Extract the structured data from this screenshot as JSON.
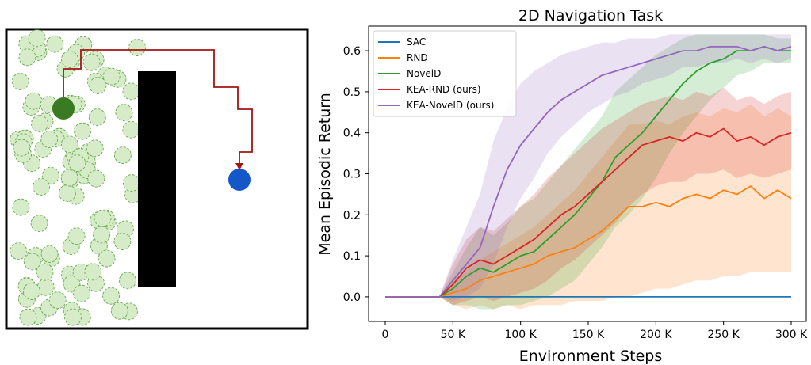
{
  "environment": {
    "start_color": "#3a7a22",
    "goal_color": "#1457c8",
    "path_color": "#a31515",
    "obstacle_color": "#000000",
    "circle_fill": "#d6ecc8",
    "circle_stroke": "#6aa84f"
  },
  "chart_data": {
    "type": "line",
    "title": "2D Navigation Task",
    "xlabel": "Environment Steps",
    "ylabel": "Mean Episodic Return",
    "xlim": [
      0,
      300000
    ],
    "ylim": [
      -0.06,
      0.66
    ],
    "xticks": [
      0,
      50000,
      100000,
      150000,
      200000,
      250000,
      300000
    ],
    "xtick_labels": [
      "0",
      "50 K",
      "100 K",
      "150 K",
      "200 K",
      "250 K",
      "300 K"
    ],
    "yticks": [
      0.0,
      0.1,
      0.2,
      0.3,
      0.4,
      0.5,
      0.6
    ],
    "ytick_labels": [
      "0.0",
      "0.1",
      "0.2",
      "0.3",
      "0.4",
      "0.5",
      "0.6"
    ],
    "legend_position": "upper-left",
    "grid": false,
    "series": [
      {
        "name": "SAC",
        "color": "#1f77b4",
        "x": [
          0,
          300000
        ],
        "y": [
          0.0,
          0.0
        ],
        "lower": [
          0.0,
          0.0
        ],
        "upper": [
          0.0,
          0.0
        ]
      },
      {
        "name": "RND",
        "color": "#ff7f0e",
        "x": [
          0,
          40000,
          50000,
          60000,
          70000,
          80000,
          90000,
          100000,
          110000,
          120000,
          130000,
          140000,
          150000,
          160000,
          170000,
          180000,
          190000,
          200000,
          210000,
          220000,
          230000,
          240000,
          250000,
          260000,
          270000,
          280000,
          290000,
          300000
        ],
        "y": [
          0.0,
          0.0,
          0.01,
          0.02,
          0.04,
          0.05,
          0.06,
          0.07,
          0.08,
          0.1,
          0.11,
          0.12,
          0.14,
          0.16,
          0.19,
          0.22,
          0.22,
          0.23,
          0.22,
          0.24,
          0.25,
          0.24,
          0.26,
          0.25,
          0.27,
          0.24,
          0.26,
          0.24
        ],
        "lower": [
          0.0,
          0.0,
          -0.02,
          -0.03,
          -0.02,
          -0.03,
          -0.02,
          -0.03,
          -0.02,
          -0.02,
          -0.02,
          -0.01,
          -0.01,
          -0.01,
          0.0,
          0.0,
          0.01,
          0.02,
          0.02,
          0.03,
          0.04,
          0.04,
          0.05,
          0.05,
          0.06,
          0.06,
          0.06,
          0.06
        ],
        "upper": [
          0.0,
          0.0,
          0.04,
          0.06,
          0.09,
          0.11,
          0.13,
          0.15,
          0.17,
          0.2,
          0.23,
          0.26,
          0.3,
          0.34,
          0.38,
          0.42,
          0.42,
          0.43,
          0.42,
          0.44,
          0.45,
          0.44,
          0.46,
          0.45,
          0.47,
          0.44,
          0.46,
          0.44
        ]
      },
      {
        "name": "NovelD",
        "color": "#2ca02c",
        "x": [
          0,
          40000,
          50000,
          60000,
          70000,
          80000,
          90000,
          100000,
          110000,
          120000,
          130000,
          140000,
          150000,
          160000,
          170000,
          180000,
          190000,
          200000,
          210000,
          220000,
          230000,
          240000,
          250000,
          260000,
          270000,
          280000,
          290000,
          300000
        ],
        "y": [
          0.0,
          0.0,
          0.02,
          0.05,
          0.07,
          0.06,
          0.08,
          0.1,
          0.11,
          0.14,
          0.17,
          0.2,
          0.24,
          0.28,
          0.34,
          0.37,
          0.4,
          0.44,
          0.48,
          0.52,
          0.55,
          0.57,
          0.58,
          0.6,
          0.6,
          0.61,
          0.6,
          0.6
        ],
        "lower": [
          0.0,
          0.0,
          -0.02,
          -0.02,
          -0.03,
          -0.03,
          -0.02,
          -0.02,
          -0.01,
          0.0,
          0.02,
          0.04,
          0.08,
          0.12,
          0.17,
          0.2,
          0.24,
          0.29,
          0.35,
          0.4,
          0.44,
          0.48,
          0.51,
          0.54,
          0.55,
          0.57,
          0.57,
          0.57
        ],
        "upper": [
          0.0,
          0.0,
          0.06,
          0.12,
          0.17,
          0.15,
          0.18,
          0.22,
          0.24,
          0.28,
          0.32,
          0.36,
          0.4,
          0.44,
          0.5,
          0.53,
          0.56,
          0.59,
          0.61,
          0.63,
          0.64,
          0.64,
          0.64,
          0.64,
          0.64,
          0.64,
          0.63,
          0.63
        ]
      },
      {
        "name": "KEA-RND (ours)",
        "color": "#d62728",
        "x": [
          0,
          40000,
          50000,
          60000,
          70000,
          80000,
          90000,
          100000,
          110000,
          120000,
          130000,
          140000,
          150000,
          160000,
          170000,
          180000,
          190000,
          200000,
          210000,
          220000,
          230000,
          240000,
          250000,
          260000,
          270000,
          280000,
          290000,
          300000
        ],
        "y": [
          0.0,
          0.0,
          0.03,
          0.07,
          0.09,
          0.08,
          0.1,
          0.12,
          0.14,
          0.17,
          0.2,
          0.22,
          0.25,
          0.28,
          0.31,
          0.34,
          0.37,
          0.38,
          0.39,
          0.38,
          0.4,
          0.39,
          0.41,
          0.38,
          0.39,
          0.37,
          0.39,
          0.4
        ],
        "lower": [
          0.0,
          0.0,
          -0.02,
          -0.01,
          0.0,
          -0.01,
          0.0,
          0.01,
          0.02,
          0.04,
          0.07,
          0.09,
          0.12,
          0.15,
          0.18,
          0.22,
          0.25,
          0.27,
          0.28,
          0.28,
          0.3,
          0.3,
          0.31,
          0.29,
          0.3,
          0.29,
          0.3,
          0.31
        ],
        "upper": [
          0.0,
          0.0,
          0.08,
          0.14,
          0.17,
          0.16,
          0.19,
          0.22,
          0.25,
          0.29,
          0.32,
          0.35,
          0.38,
          0.41,
          0.43,
          0.45,
          0.47,
          0.48,
          0.49,
          0.48,
          0.5,
          0.49,
          0.51,
          0.48,
          0.49,
          0.47,
          0.49,
          0.5
        ]
      },
      {
        "name": "KEA-NovelD (ours)",
        "color": "#9467bd",
        "x": [
          0,
          40000,
          50000,
          60000,
          70000,
          80000,
          90000,
          100000,
          110000,
          120000,
          130000,
          140000,
          150000,
          160000,
          170000,
          180000,
          190000,
          200000,
          210000,
          220000,
          230000,
          240000,
          250000,
          260000,
          270000,
          280000,
          290000,
          300000
        ],
        "y": [
          0.0,
          0.0,
          0.04,
          0.08,
          0.12,
          0.22,
          0.31,
          0.37,
          0.41,
          0.45,
          0.48,
          0.5,
          0.52,
          0.54,
          0.55,
          0.56,
          0.57,
          0.58,
          0.59,
          0.6,
          0.6,
          0.61,
          0.61,
          0.61,
          0.6,
          0.61,
          0.6,
          0.61
        ],
        "lower": [
          0.0,
          0.0,
          -0.01,
          0.0,
          0.02,
          0.08,
          0.17,
          0.24,
          0.29,
          0.35,
          0.39,
          0.42,
          0.45,
          0.47,
          0.49,
          0.5,
          0.52,
          0.53,
          0.54,
          0.56,
          0.56,
          0.57,
          0.57,
          0.58,
          0.57,
          0.58,
          0.57,
          0.58
        ],
        "upper": [
          0.0,
          0.0,
          0.09,
          0.17,
          0.25,
          0.38,
          0.46,
          0.52,
          0.55,
          0.57,
          0.59,
          0.6,
          0.61,
          0.62,
          0.62,
          0.63,
          0.63,
          0.63,
          0.64,
          0.64,
          0.64,
          0.64,
          0.64,
          0.64,
          0.64,
          0.64,
          0.64,
          0.64
        ]
      }
    ]
  }
}
